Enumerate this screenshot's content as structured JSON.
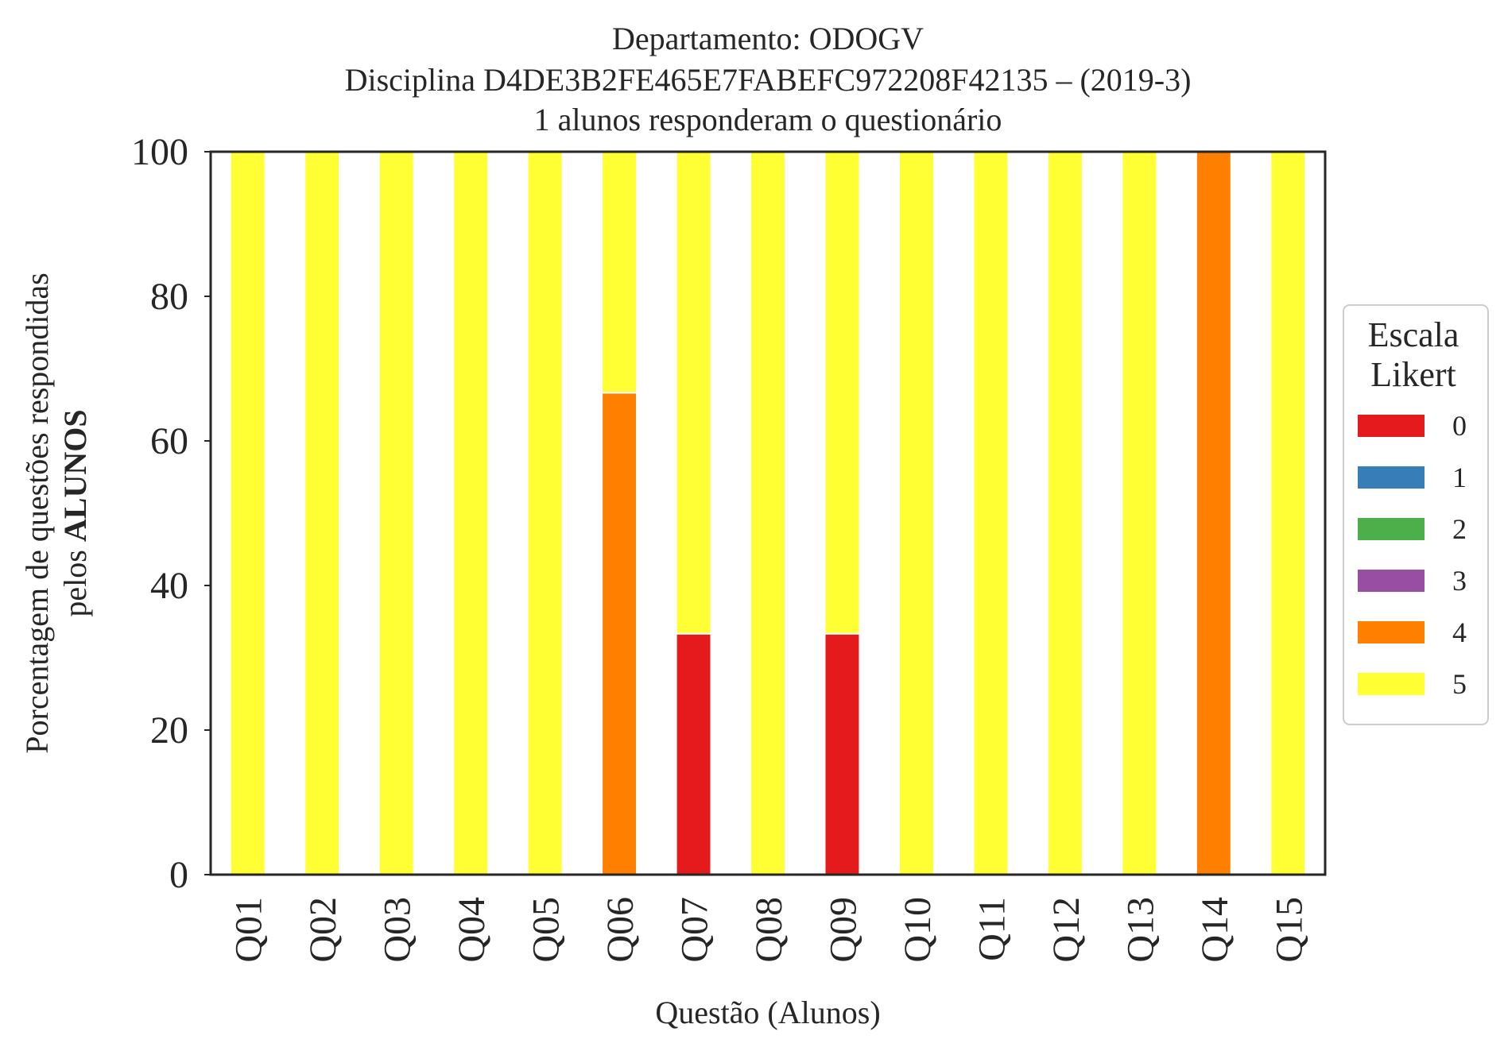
{
  "chart_data": {
    "type": "bar",
    "stacked": true,
    "title_lines": [
      "Departamento: ODOGV",
      "Disciplina D4DE3B2FE465E7FABEFC972208F42135 – (2019-3)",
      "1 alunos responderam o questionário"
    ],
    "xlabel": "Questão (Alunos)",
    "ylabel_line1": "Porcentagem de questões respondidas",
    "ylabel_line2_prefix": "pelos ",
    "ylabel_line2_bold": "ALUNOS",
    "ylim": [
      0,
      100
    ],
    "yticks": [
      "0",
      "20",
      "40",
      "60",
      "80",
      "100"
    ],
    "grid": false,
    "categories": [
      "Q01",
      "Q02",
      "Q03",
      "Q04",
      "Q05",
      "Q06",
      "Q07",
      "Q08",
      "Q09",
      "Q10",
      "Q11",
      "Q12",
      "Q13",
      "Q14",
      "Q15"
    ],
    "legend": {
      "title_line1": "Escala",
      "title_line2": "Likert",
      "placement": "center-right-outside"
    },
    "series": [
      {
        "name": "0",
        "color": "#e41a1c",
        "values": [
          0,
          0,
          0,
          0,
          0,
          0,
          33.33,
          0,
          33.33,
          0,
          0,
          0,
          0,
          0,
          0
        ]
      },
      {
        "name": "1",
        "color": "#377eb8",
        "values": [
          0,
          0,
          0,
          0,
          0,
          0,
          0,
          0,
          0,
          0,
          0,
          0,
          0,
          0,
          0
        ]
      },
      {
        "name": "2",
        "color": "#4daf4a",
        "values": [
          0,
          0,
          0,
          0,
          0,
          0,
          0,
          0,
          0,
          0,
          0,
          0,
          0,
          0,
          0
        ]
      },
      {
        "name": "3",
        "color": "#984ea3",
        "values": [
          0,
          0,
          0,
          0,
          0,
          0,
          0,
          0,
          0,
          0,
          0,
          0,
          0,
          0,
          0
        ]
      },
      {
        "name": "4",
        "color": "#ff7f00",
        "values": [
          0,
          0,
          0,
          0,
          0,
          66.67,
          0,
          0,
          0,
          0,
          0,
          0,
          0,
          100,
          0
        ]
      },
      {
        "name": "5",
        "color": "#ffff33",
        "values": [
          100,
          100,
          100,
          100,
          100,
          33.33,
          66.67,
          100,
          66.67,
          100,
          100,
          100,
          100,
          0,
          100
        ]
      }
    ]
  }
}
